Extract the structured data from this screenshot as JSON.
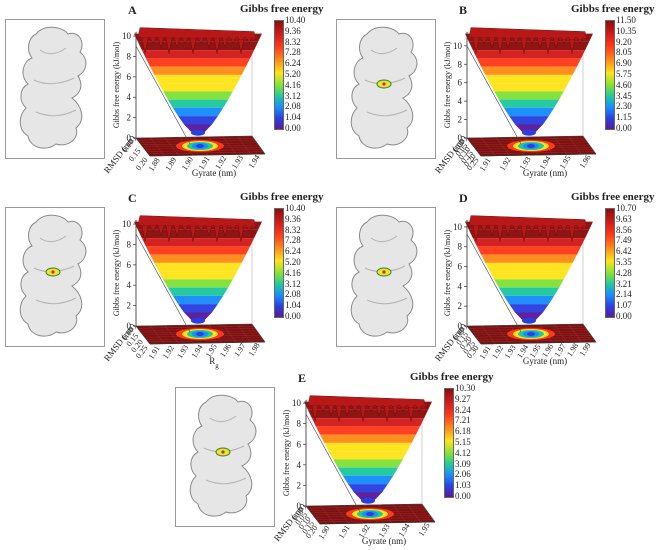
{
  "figure": {
    "colormap": [
      "#5a1a9a",
      "#2a3fe0",
      "#1a8cff",
      "#1ec8a0",
      "#7fe13a",
      "#ffe31a",
      "#ff8a1a",
      "#ff3a1a",
      "#d11b1b",
      "#8b0d0d"
    ],
    "floor_color": "#7a1010",
    "rim_color": "#b81818",
    "inset_protein_color": "#e6e6e6",
    "ligand_color": "#e8e630"
  },
  "chart_data": [
    {
      "type": "surface3d",
      "panel": "A",
      "title": "Gibbs free energy",
      "zlabel": "Gibbs free energy (kJ/mol)",
      "xlabel": "Gyrate (nm)",
      "ylabel": "RMSD (nm)",
      "zticks": [
        "0",
        "2",
        "4",
        "6",
        "8",
        "10"
      ],
      "xticks": [
        "1.88",
        "1.89",
        "1.90",
        "1.91",
        "1.92",
        "1.93",
        "1.94"
      ],
      "yticks": [
        "0.10",
        "0.15",
        "0.20"
      ],
      "colorbar": [
        "10.40",
        "9.36",
        "8.32",
        "7.28",
        "6.24",
        "5.20",
        "4.16",
        "3.12",
        "2.08",
        "1.04",
        "0.00"
      ],
      "zlim": [
        0,
        10.4
      ],
      "ligand_visible": false
    },
    {
      "type": "surface3d",
      "panel": "B",
      "title": "Gibbs free energy",
      "zlabel": "Gibbs free energy (kJ/mol)",
      "xlabel": "Gyrate (nm)",
      "ylabel": "RMSD (nm)",
      "zticks": [
        "0",
        "2",
        "4",
        "6",
        "8",
        "10"
      ],
      "xticks": [
        "1.91",
        "1.92",
        "1.93",
        "1.94",
        "1.95",
        "1.96"
      ],
      "yticks": [
        "0.00",
        "0.05",
        "0.10",
        "0.15",
        "0.20",
        "0.25"
      ],
      "colorbar": [
        "11.50",
        "10.35",
        "9.20",
        "8.05",
        "6.90",
        "5.75",
        "4.60",
        "3.45",
        "2.30",
        "1.15",
        "0.00"
      ],
      "zlim": [
        0,
        11.5
      ],
      "ligand_visible": true
    },
    {
      "type": "surface3d",
      "panel": "C",
      "title": "Gibbs free energy",
      "zlabel": "Gibbs free energy (kJ/mol)",
      "xlabel": "R",
      "xlabel_sub": "g",
      "ylabel": "RMSD (nm)",
      "zticks": [
        "0",
        "2",
        "4",
        "6",
        "8",
        "10"
      ],
      "xticks": [
        "1.91",
        "1.92",
        "1.93",
        "1.94",
        "1.95",
        "1.96",
        "1.97",
        "1.98"
      ],
      "yticks": [
        "0.10",
        "0.15",
        "0.20",
        "0.25"
      ],
      "colorbar": [
        "10.40",
        "9.36",
        "8.32",
        "7.28",
        "6.24",
        "5.20",
        "4.16",
        "3.12",
        "2.08",
        "1.04",
        "0.00"
      ],
      "zlim": [
        0,
        10.4
      ],
      "ligand_visible": true
    },
    {
      "type": "surface3d",
      "panel": "D",
      "title": "Gibbs free energy",
      "zlabel": "Gibbs free energy (kJ/mol)",
      "xlabel": "Gyrate (nm)",
      "ylabel": "RMSD (nm)",
      "zticks": [
        "0",
        "2",
        "4",
        "6",
        "8",
        "10"
      ],
      "xticks": [
        "1.91",
        "1.92",
        "1.93",
        "1.94",
        "1.95",
        "1.96",
        "1.97",
        "1.98",
        "1.99"
      ],
      "yticks": [
        "0.10",
        "0.15",
        "0.20",
        "0.25",
        "0.30"
      ],
      "colorbar": [
        "10.70",
        "9.63",
        "8.56",
        "7.49",
        "6.42",
        "5.35",
        "4.28",
        "3.21",
        "2.14",
        "1.07",
        "0.00"
      ],
      "zlim": [
        0,
        10.7
      ],
      "ligand_visible": true
    },
    {
      "type": "surface3d",
      "panel": "E",
      "title": "Gibbs free energy",
      "zlabel": "Gibbs free energy (kJ/mol)",
      "xlabel": "Gyrate (nm)",
      "ylabel": "RMSD (nm)",
      "zticks": [
        "0",
        "2",
        "4",
        "6",
        "8",
        "10"
      ],
      "xticks": [
        "1.90",
        "1.91",
        "1.92",
        "1.93",
        "1.94",
        "1.95"
      ],
      "yticks": [
        "0.00",
        "0.05",
        "0.10",
        "0.15",
        "0.20"
      ],
      "colorbar": [
        "10.30",
        "9.27",
        "8.24",
        "7.21",
        "6.18",
        "5.15",
        "4.12",
        "3.09",
        "2.06",
        "1.03",
        "0.00"
      ],
      "zlim": [
        0,
        10.3
      ],
      "ligand_visible": true
    }
  ]
}
